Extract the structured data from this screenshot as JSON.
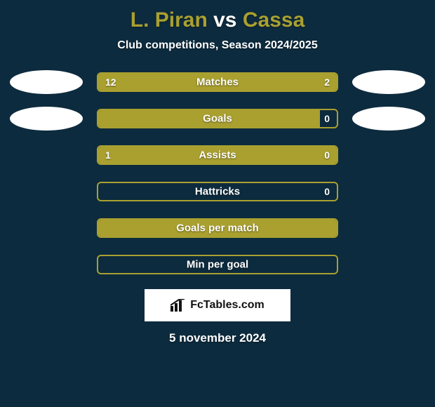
{
  "colors": {
    "background": "#0d2b3e",
    "text": "#ffffff",
    "player1_accent": "#a9a030",
    "player2_accent": "#a9a030",
    "bar_border": "#a9a030",
    "bar_fill": "#a9a030",
    "avatar_bg": "#ffffff",
    "logo_bg": "#ffffff",
    "logo_text": "#111111"
  },
  "title": {
    "player1": "L. Piran",
    "vs": "vs",
    "player2": "Cassa"
  },
  "subtitle": "Club competitions, Season 2024/2025",
  "date": "5 november 2024",
  "logo_text": "FcTables.com",
  "stats": [
    {
      "label": "Matches",
      "left_value": "12",
      "right_value": "2",
      "left_pct": 78,
      "right_pct": 22,
      "show_left_avatar": true,
      "show_right_avatar": true,
      "show_left_value": true,
      "show_right_value": true
    },
    {
      "label": "Goals",
      "left_value": "",
      "right_value": "0",
      "left_pct": 93,
      "right_pct": 0,
      "show_left_avatar": true,
      "show_right_avatar": true,
      "show_left_value": false,
      "show_right_value": true
    },
    {
      "label": "Assists",
      "left_value": "1",
      "right_value": "0",
      "left_pct": 78,
      "right_pct": 22,
      "show_left_avatar": false,
      "show_right_avatar": false,
      "show_left_value": true,
      "show_right_value": true
    },
    {
      "label": "Hattricks",
      "left_value": "",
      "right_value": "0",
      "left_pct": 0,
      "right_pct": 0,
      "show_left_avatar": false,
      "show_right_avatar": false,
      "show_left_value": false,
      "show_right_value": true
    },
    {
      "label": "Goals per match",
      "left_value": "",
      "right_value": "",
      "left_pct": 100,
      "right_pct": 0,
      "show_left_avatar": false,
      "show_right_avatar": false,
      "show_left_value": false,
      "show_right_value": false
    },
    {
      "label": "Min per goal",
      "left_value": "",
      "right_value": "",
      "left_pct": 0,
      "right_pct": 0,
      "show_left_avatar": false,
      "show_right_avatar": false,
      "show_left_value": false,
      "show_right_value": false
    }
  ]
}
